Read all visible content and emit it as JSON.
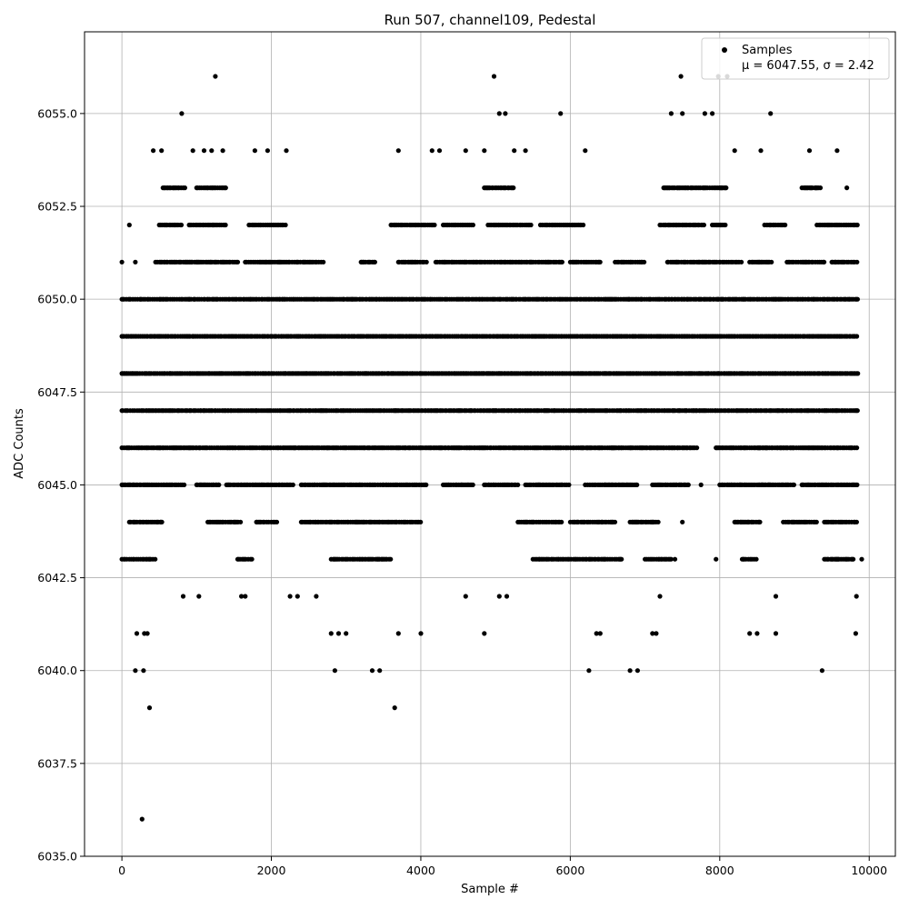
{
  "chart_data": {
    "type": "scatter",
    "title": "Run 507, channel109, Pedestal",
    "xlabel": "Sample #",
    "ylabel": "ADC Counts",
    "xlim": [
      -500,
      10350
    ],
    "ylim": [
      6035.0,
      6057.2
    ],
    "x_ticks": [
      0,
      2000,
      4000,
      6000,
      8000,
      10000
    ],
    "y_ticks": [
      6035.0,
      6037.5,
      6040.0,
      6042.5,
      6045.0,
      6047.5,
      6050.0,
      6052.5,
      6055.0
    ],
    "x_tick_labels": [
      "0",
      "2000",
      "4000",
      "6000",
      "8000",
      "10000"
    ],
    "y_tick_labels": [
      "6035.0",
      "6037.5",
      "6040.0",
      "6042.5",
      "6045.0",
      "6047.5",
      "6050.0",
      "6052.5",
      "6055.0"
    ],
    "grid": true,
    "marker_color": "#000000",
    "legend": {
      "placement": "top-right",
      "label": "Samples",
      "stats_text": "μ = 6047.55, σ = 2.42"
    },
    "series": [
      {
        "name": "Samples",
        "dense_levels": [
          {
            "y": 6043,
            "ranges": [
              [
                0,
                450
              ],
              [
                1550,
                1750
              ],
              [
                2800,
                3600
              ],
              [
                5500,
                6700
              ],
              [
                7000,
                7350
              ],
              [
                8300,
                8500
              ],
              [
                9400,
                9800
              ]
            ]
          },
          {
            "y": 6044,
            "ranges": [
              [
                100,
                550
              ],
              [
                1150,
                1600
              ],
              [
                1800,
                2100
              ],
              [
                2400,
                4000
              ],
              [
                5300,
                5900
              ],
              [
                6000,
                6600
              ],
              [
                6800,
                7200
              ],
              [
                8200,
                8550
              ],
              [
                8850,
                9300
              ],
              [
                9400,
                9850
              ]
            ]
          },
          {
            "y": 6045,
            "ranges": [
              [
                0,
                850
              ],
              [
                1000,
                1300
              ],
              [
                1400,
                2300
              ],
              [
                2400,
                4100
              ],
              [
                4300,
                4700
              ],
              [
                4850,
                5300
              ],
              [
                5400,
                6000
              ],
              [
                6200,
                6900
              ],
              [
                7100,
                7600
              ],
              [
                8000,
                9000
              ],
              [
                9100,
                9850
              ]
            ]
          },
          {
            "y": 6046,
            "ranges": [
              [
                0,
                7700
              ],
              [
                7950,
                9850
              ]
            ]
          },
          {
            "y": 6047,
            "ranges": [
              [
                0,
                9850
              ]
            ]
          },
          {
            "y": 6048,
            "ranges": [
              [
                0,
                9850
              ]
            ]
          },
          {
            "y": 6049,
            "ranges": [
              [
                0,
                9850
              ]
            ]
          },
          {
            "y": 6050,
            "ranges": [
              [
                0,
                9850
              ]
            ]
          },
          {
            "y": 6051,
            "ranges": [
              [
                450,
                1550
              ],
              [
                1650,
                2700
              ],
              [
                3200,
                3400
              ],
              [
                3700,
                4100
              ],
              [
                4200,
                5900
              ],
              [
                6000,
                6400
              ],
              [
                6600,
                7000
              ],
              [
                7300,
                8300
              ],
              [
                8400,
                8700
              ],
              [
                8900,
                9400
              ],
              [
                9500,
                9850
              ]
            ]
          },
          {
            "y": 6052,
            "ranges": [
              [
                500,
                800
              ],
              [
                900,
                1400
              ],
              [
                1700,
                2200
              ],
              [
                3600,
                4200
              ],
              [
                4300,
                4700
              ],
              [
                4900,
                5500
              ],
              [
                5600,
                6200
              ],
              [
                7200,
                7800
              ],
              [
                7900,
                8100
              ],
              [
                8600,
                8900
              ],
              [
                9300,
                9850
              ]
            ]
          },
          {
            "y": 6053,
            "ranges": [
              [
                550,
                850
              ],
              [
                1000,
                1400
              ],
              [
                4850,
                5250
              ],
              [
                7250,
                8100
              ],
              [
                9100,
                9350
              ]
            ]
          }
        ],
        "points": [
          [
            0,
            6051
          ],
          [
            100,
            6052
          ],
          [
            180,
            6051
          ],
          [
            200,
            6041
          ],
          [
            180,
            6040
          ],
          [
            300,
            6041
          ],
          [
            340,
            6041
          ],
          [
            290,
            6040
          ],
          [
            370,
            6039
          ],
          [
            270,
            6036
          ],
          [
            420,
            6054
          ],
          [
            530,
            6054
          ],
          [
            800,
            6055
          ],
          [
            950,
            6054
          ],
          [
            1100,
            6054
          ],
          [
            1200,
            6054
          ],
          [
            1350,
            6054
          ],
          [
            1250,
            6056
          ],
          [
            1780,
            6054
          ],
          [
            1950,
            6054
          ],
          [
            2200,
            6054
          ],
          [
            1030,
            6042
          ],
          [
            820,
            6042
          ],
          [
            1600,
            6042
          ],
          [
            1650,
            6042
          ],
          [
            2250,
            6042
          ],
          [
            2350,
            6042
          ],
          [
            2600,
            6042
          ],
          [
            2800,
            6041
          ],
          [
            2850,
            6040
          ],
          [
            2900,
            6041
          ],
          [
            3000,
            6041
          ],
          [
            3350,
            6040
          ],
          [
            3450,
            6040
          ],
          [
            3650,
            6039
          ],
          [
            3700,
            6041
          ],
          [
            4000,
            6041
          ],
          [
            3700,
            6054
          ],
          [
            4150,
            6054
          ],
          [
            4250,
            6054
          ],
          [
            4600,
            6054
          ],
          [
            4850,
            6054
          ],
          [
            4980,
            6056
          ],
          [
            5050,
            6055
          ],
          [
            5130,
            6055
          ],
          [
            5250,
            6054
          ],
          [
            5400,
            6054
          ],
          [
            4850,
            6041
          ],
          [
            4600,
            6042
          ],
          [
            5050,
            6042
          ],
          [
            5150,
            6042
          ],
          [
            5870,
            6055
          ],
          [
            6200,
            6054
          ],
          [
            6250,
            6040
          ],
          [
            6350,
            6041
          ],
          [
            6400,
            6041
          ],
          [
            6800,
            6040
          ],
          [
            6900,
            6040
          ],
          [
            7100,
            6041
          ],
          [
            7150,
            6041
          ],
          [
            7200,
            6042
          ],
          [
            7400,
            6043
          ],
          [
            7500,
            6044
          ],
          [
            7350,
            6055
          ],
          [
            7480,
            6056
          ],
          [
            7500,
            6055
          ],
          [
            7800,
            6055
          ],
          [
            7900,
            6055
          ],
          [
            7980,
            6056
          ],
          [
            8100,
            6056
          ],
          [
            8200,
            6054
          ],
          [
            8550,
            6054
          ],
          [
            8680,
            6055
          ],
          [
            7750,
            6045
          ],
          [
            7950,
            6043
          ],
          [
            8400,
            6041
          ],
          [
            8500,
            6041
          ],
          [
            8750,
            6041
          ],
          [
            8750,
            6042
          ],
          [
            9200,
            6054
          ],
          [
            9570,
            6054
          ],
          [
            9370,
            6040
          ],
          [
            9700,
            6053
          ],
          [
            9820,
            6041
          ],
          [
            9830,
            6042
          ],
          [
            9900,
            6043
          ]
        ]
      }
    ]
  }
}
